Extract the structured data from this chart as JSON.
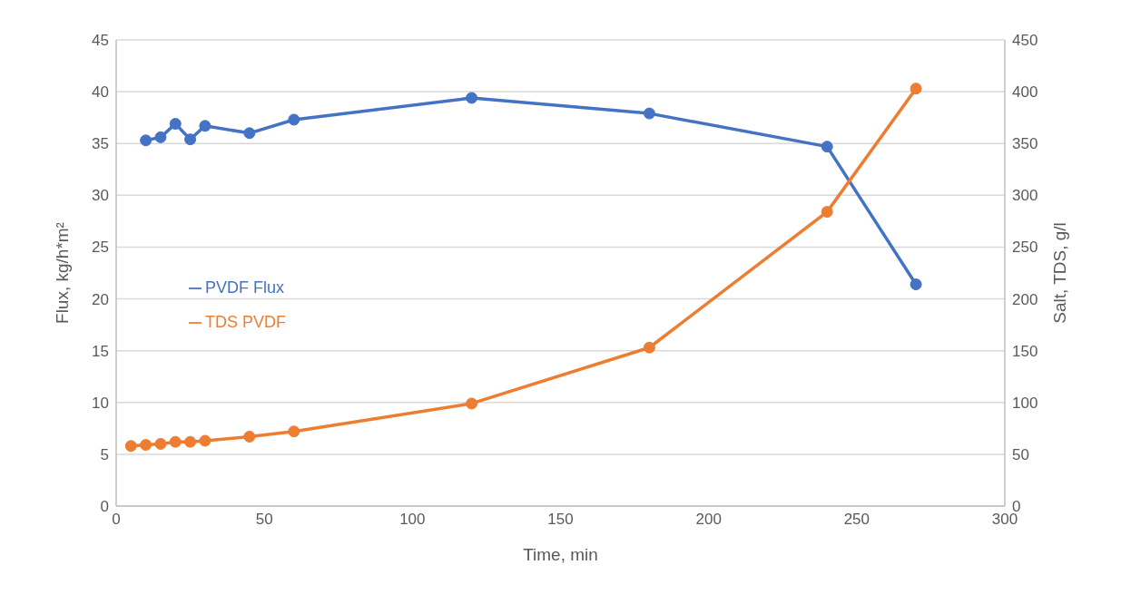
{
  "chart_data": {
    "type": "line",
    "xlabel": "Time, min",
    "ylabel": "Flux, kg/h*m²",
    "y2label": "Salt, TDS, g/l",
    "xlim": [
      0,
      300
    ],
    "xticks": [
      0,
      50,
      100,
      150,
      200,
      250,
      300
    ],
    "ylim": [
      0,
      45
    ],
    "yticks": [
      0,
      5,
      10,
      15,
      20,
      25,
      30,
      35,
      40,
      45
    ],
    "y2lim": [
      0,
      450
    ],
    "y2ticks": [
      0,
      50,
      100,
      150,
      200,
      250,
      300,
      350,
      400,
      450
    ],
    "grid": "y",
    "legend": "left",
    "marker": "circle",
    "line_style": "solid",
    "series": [
      {
        "name": "PVDF Flux",
        "color": "#4472c4",
        "x": [
          10,
          15,
          20,
          25,
          30,
          45,
          60,
          120,
          180,
          240,
          270
        ],
        "values": [
          35.3,
          35.6,
          36.9,
          35.4,
          36.7,
          36.0,
          37.3,
          39.4,
          37.9,
          34.7,
          21.4
        ]
      },
      {
        "name": "TDS PVDF",
        "color": "#ed7d31",
        "axis": "y2",
        "x": [
          5,
          10,
          15,
          20,
          25,
          30,
          45,
          60,
          120,
          180,
          240,
          270
        ],
        "values": [
          58,
          59,
          60,
          62,
          62,
          63,
          67,
          72,
          99,
          153,
          284,
          403
        ]
      }
    ]
  }
}
